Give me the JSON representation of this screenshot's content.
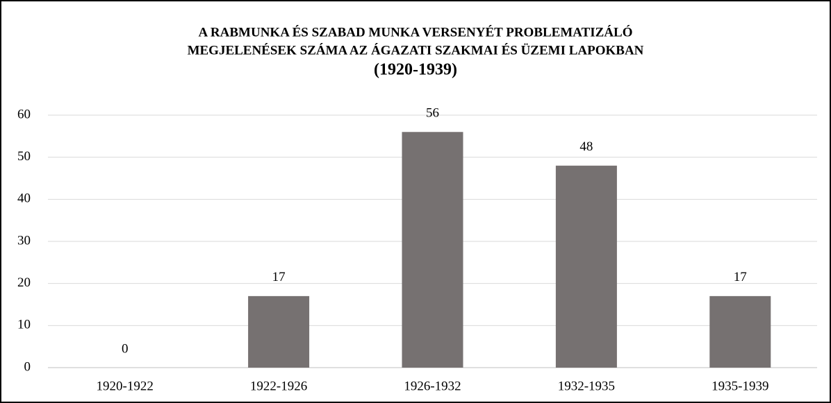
{
  "chart_data": {
    "type": "bar",
    "title": [
      "A RABMUNKA ÉS SZABAD MUNKA VERSENYÉT PROBLEMATIZÁLÓ",
      "MEGJELENÉSEK SZÁMA AZ ÁGAZATI SZAKMAI ÉS ÜZEMI LAPOKBAN",
      "(1920-1939)"
    ],
    "categories": [
      "1920-1922",
      "1922-1926",
      "1926-1932",
      "1932-1935",
      "1935-1939"
    ],
    "values": [
      0,
      17,
      56,
      48,
      17
    ],
    "color": "#767171",
    "ylim": [
      0,
      60
    ],
    "yticks": [
      0,
      10,
      20,
      30,
      40,
      50,
      60
    ],
    "grid": true
  }
}
